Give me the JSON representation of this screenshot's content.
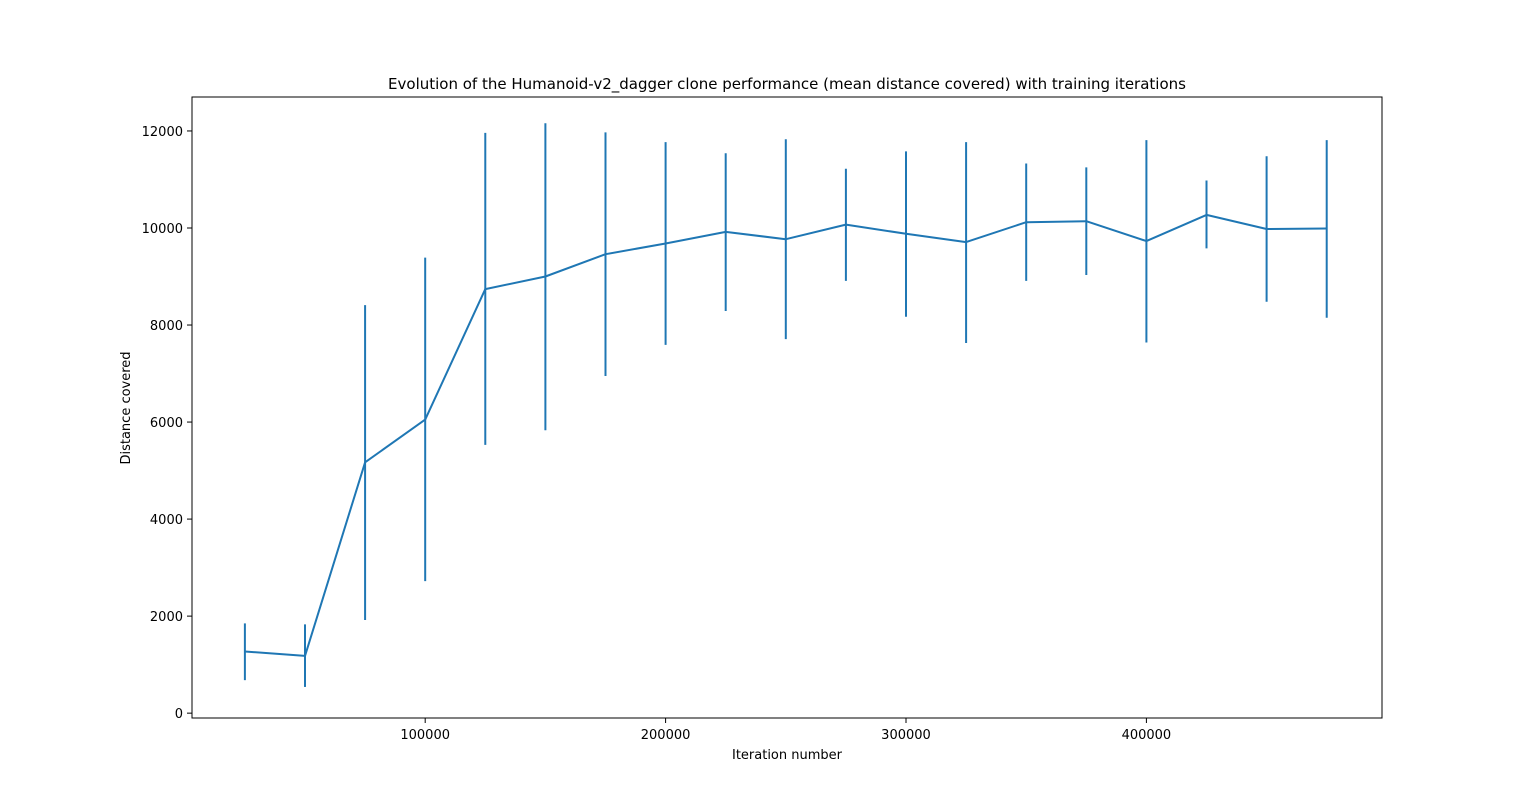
{
  "chart_data": {
    "type": "line",
    "title": "Evolution of the Humanoid-v2_dagger clone performance (mean distance covered) with training iterations",
    "xlabel": "Iteration number",
    "ylabel": "Distance covered",
    "xlim": [
      3000,
      498000
    ],
    "ylim": [
      -100,
      12700
    ],
    "xticks": [
      100000,
      200000,
      300000,
      400000
    ],
    "xtick_labels": [
      "100000",
      "200000",
      "300000",
      "400000"
    ],
    "yticks": [
      0,
      2000,
      4000,
      6000,
      8000,
      10000,
      12000
    ],
    "ytick_labels": [
      "0",
      "2000",
      "4000",
      "6000",
      "8000",
      "10000",
      "12000"
    ],
    "grid": false,
    "legend": "none",
    "series": [
      {
        "color": "#1f77b4",
        "x": [
          25000,
          50000,
          75000,
          100000,
          125000,
          150000,
          175000,
          200000,
          225000,
          250000,
          275000,
          300000,
          325000,
          350000,
          375000,
          400000,
          425000,
          450000,
          475000
        ],
        "y": [
          1270,
          1180,
          5170,
          6050,
          8740,
          9000,
          9460,
          9680,
          9920,
          9770,
          10070,
          9880,
          9710,
          10120,
          10140,
          9730,
          10270,
          9980,
          9990
        ],
        "err_low": [
          680,
          540,
          1920,
          2720,
          5530,
          5830,
          6950,
          7590,
          8290,
          7710,
          8910,
          8170,
          7630,
          8910,
          9030,
          7640,
          9580,
          8480,
          8150
        ],
        "err_high": [
          1850,
          1830,
          8410,
          9390,
          11960,
          12160,
          11970,
          11770,
          11540,
          11830,
          11220,
          11580,
          11770,
          11330,
          11250,
          11810,
          10980,
          11480,
          11810
        ]
      }
    ]
  }
}
